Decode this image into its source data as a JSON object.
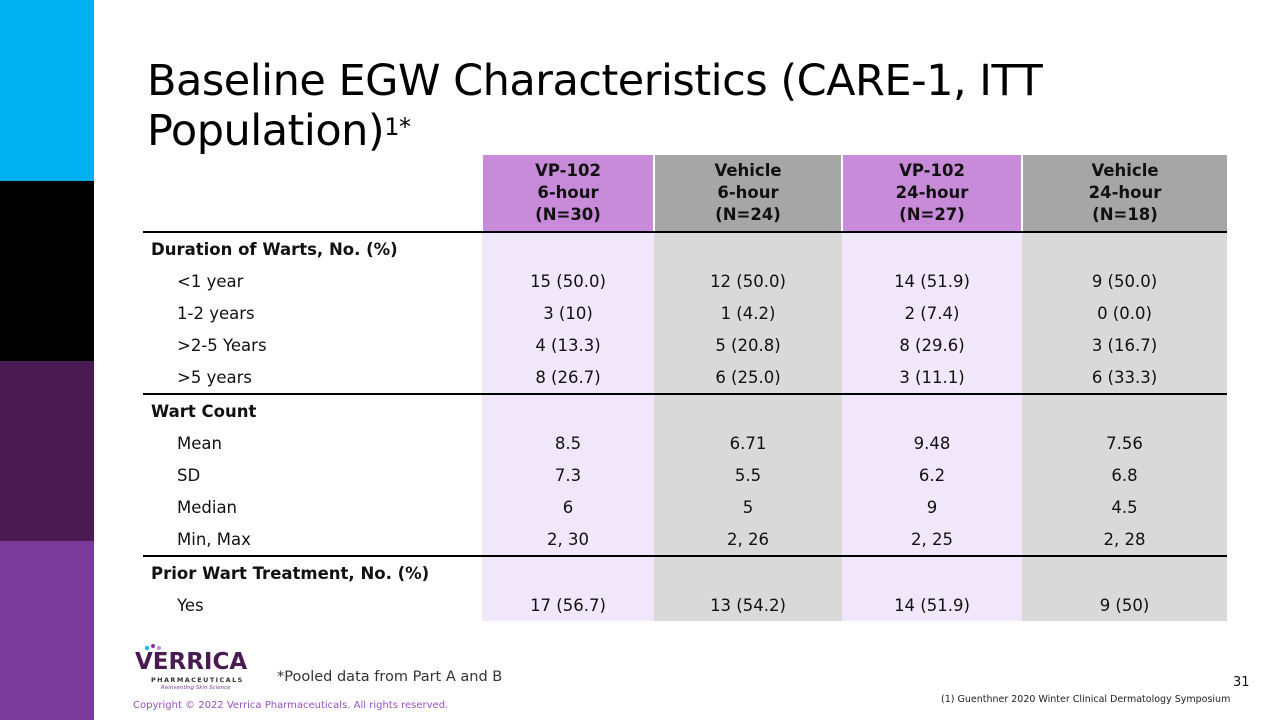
{
  "slide": {
    "title": "Baseline EGW Characteristics (CARE-1, ITT Population)",
    "title_sup": "1*",
    "page_number": "31",
    "pooled_note": "*Pooled data from Part A and B",
    "copyright": "Copyright © 2022 Verrica Pharmaceuticals. All rights reserved.",
    "reference": "(1) Guenthner 2020 Winter Clinical Dermatology Symposium"
  },
  "logo": {
    "wordmark": "VERRICA",
    "sub": "PHARMACEUTICALS",
    "tagline": "Reinventing Skin Science"
  },
  "table": {
    "columns": [
      {
        "line1": "VP-102",
        "line2": "6-hour",
        "line3": "(N=30)"
      },
      {
        "line1": "Vehicle",
        "line2": "6-hour",
        "line3": "(N=24)"
      },
      {
        "line1": "VP-102",
        "line2": "24-hour",
        "line3": "(N=27)"
      },
      {
        "line1": "Vehicle",
        "line2": "24-hour",
        "line3": "(N=18)"
      }
    ],
    "sections": [
      {
        "heading": "Duration of Warts, No. (%)",
        "rows": [
          {
            "label": "<1 year",
            "values": [
              "15 (50.0)",
              "12 (50.0)",
              "14 (51.9)",
              "9 (50.0)"
            ]
          },
          {
            "label": "1-2 years",
            "values": [
              "3 (10)",
              "1 (4.2)",
              "2 (7.4)",
              "0 (0.0)"
            ]
          },
          {
            "label": ">2-5 Years",
            "values": [
              "4 (13.3)",
              "5 (20.8)",
              "8 (29.6)",
              "3 (16.7)"
            ]
          },
          {
            "label": ">5 years",
            "values": [
              "8 (26.7)",
              "6 (25.0)",
              "3 (11.1)",
              "6 (33.3)"
            ]
          }
        ]
      },
      {
        "heading": "Wart Count",
        "rows": [
          {
            "label": "Mean",
            "values": [
              "8.5",
              "6.71",
              "9.48",
              "7.56"
            ]
          },
          {
            "label": "SD",
            "values": [
              "7.3",
              "5.5",
              "6.2",
              "6.8"
            ]
          },
          {
            "label": "Median",
            "values": [
              "6",
              "5",
              "9",
              "4.5"
            ]
          },
          {
            "label": "Min, Max",
            "values": [
              "2, 30",
              "2, 26",
              "2, 25",
              "2, 28"
            ]
          }
        ]
      },
      {
        "heading": "Prior Wart Treatment, No. (%)",
        "rows": [
          {
            "label": "Yes",
            "values": [
              "17 (56.7)",
              "13 (54.2)",
              "14 (51.9)",
              "9 (50)"
            ]
          }
        ]
      }
    ]
  },
  "colors": {
    "vp_header": "#c88bd9",
    "vehicle_header": "#a6a6a6",
    "vp_cell": "#f1e7fb",
    "vehicle_cell": "#d9d9d9",
    "sidebar": [
      "#00b0f0",
      "#000000",
      "#4a1a52",
      "#7a3a9a"
    ]
  }
}
